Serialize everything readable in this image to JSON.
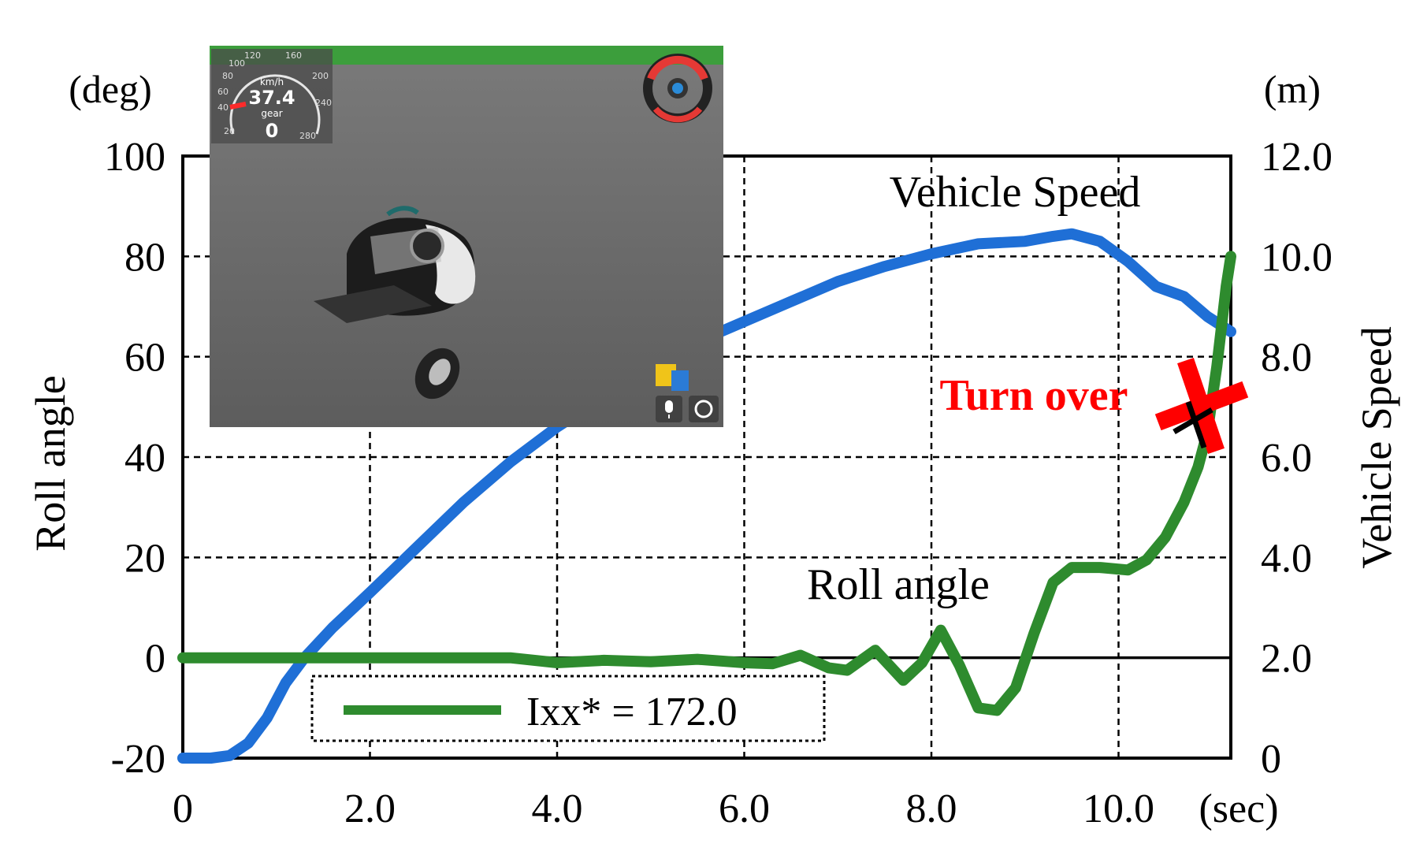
{
  "chart_data": {
    "type": "line",
    "x_unit": "(sec)",
    "x_ticks": [
      "0",
      "2.0",
      "4.0",
      "6.0",
      "8.0",
      "10.0"
    ],
    "xlim": [
      0,
      11.2
    ],
    "left_axis": {
      "label": "Roll angle",
      "unit": "(deg)",
      "ylim": [
        -20,
        100
      ],
      "ticks": [
        "-20",
        "0",
        "20",
        "40",
        "60",
        "80",
        "100"
      ]
    },
    "right_axis": {
      "label": "Vehicle Speed",
      "unit": "(m)",
      "ylim": [
        0,
        12
      ],
      "ticks": [
        "0",
        "2.0",
        "4.0",
        "6.0",
        "8.0",
        "10.0",
        "12.0"
      ]
    },
    "grid": true,
    "series": [
      {
        "name": "Vehicle Speed",
        "axis": "right",
        "color": "#1f6fd6",
        "x": [
          0,
          0.3,
          0.5,
          0.7,
          0.9,
          1.1,
          1.3,
          1.6,
          2.0,
          2.5,
          3.0,
          3.5,
          4.0,
          4.5,
          5.0,
          5.5,
          6.0,
          6.5,
          7.0,
          7.5,
          8.0,
          8.5,
          9.0,
          9.3,
          9.5,
          9.8,
          10.1,
          10.4,
          10.7,
          10.95,
          11.2
        ],
        "y": [
          0,
          0,
          0.05,
          0.3,
          0.8,
          1.5,
          2.0,
          2.6,
          3.3,
          4.2,
          5.1,
          5.9,
          6.6,
          7.2,
          7.8,
          8.3,
          8.7,
          9.1,
          9.5,
          9.8,
          10.05,
          10.25,
          10.3,
          10.4,
          10.45,
          10.3,
          9.9,
          9.4,
          9.2,
          8.8,
          8.5
        ]
      },
      {
        "name": "Roll angle",
        "axis": "left",
        "color": "#2e8b2e",
        "x": [
          0,
          3.5,
          4.0,
          4.5,
          5.0,
          5.5,
          6.0,
          6.3,
          6.6,
          6.9,
          7.1,
          7.4,
          7.7,
          7.9,
          8.1,
          8.3,
          8.5,
          8.7,
          8.9,
          9.1,
          9.3,
          9.5,
          9.8,
          10.1,
          10.3,
          10.5,
          10.7,
          10.85,
          10.95,
          11.05,
          11.15,
          11.2
        ],
        "y": [
          0,
          0,
          -1,
          -0.5,
          -0.8,
          -0.3,
          -1,
          -1.2,
          0.5,
          -2,
          -2.5,
          1.5,
          -4.5,
          -1,
          5.5,
          -1.5,
          -10,
          -10.5,
          -6,
          5,
          15,
          18,
          18,
          17.5,
          19.5,
          24,
          31,
          38,
          45,
          58,
          74,
          80
        ]
      }
    ],
    "legend": {
      "placement": "bottom-center",
      "entries": [
        {
          "label": "Ixx* = 172.0",
          "color": "#2e8b2e"
        }
      ]
    },
    "annotations": {
      "speed_label": "Vehicle Speed",
      "roll_label": "Roll angle",
      "turn_over": "Turn over",
      "turn_over_color": "#ff0000"
    }
  },
  "inset": {
    "speed_value": "37.4",
    "speed_unit": "km/h",
    "gear_label": "gear",
    "gear_value": "0",
    "dial_marks": [
      "20",
      "40",
      "60",
      "80",
      "100",
      "120",
      "160",
      "200",
      "240",
      "280"
    ]
  }
}
